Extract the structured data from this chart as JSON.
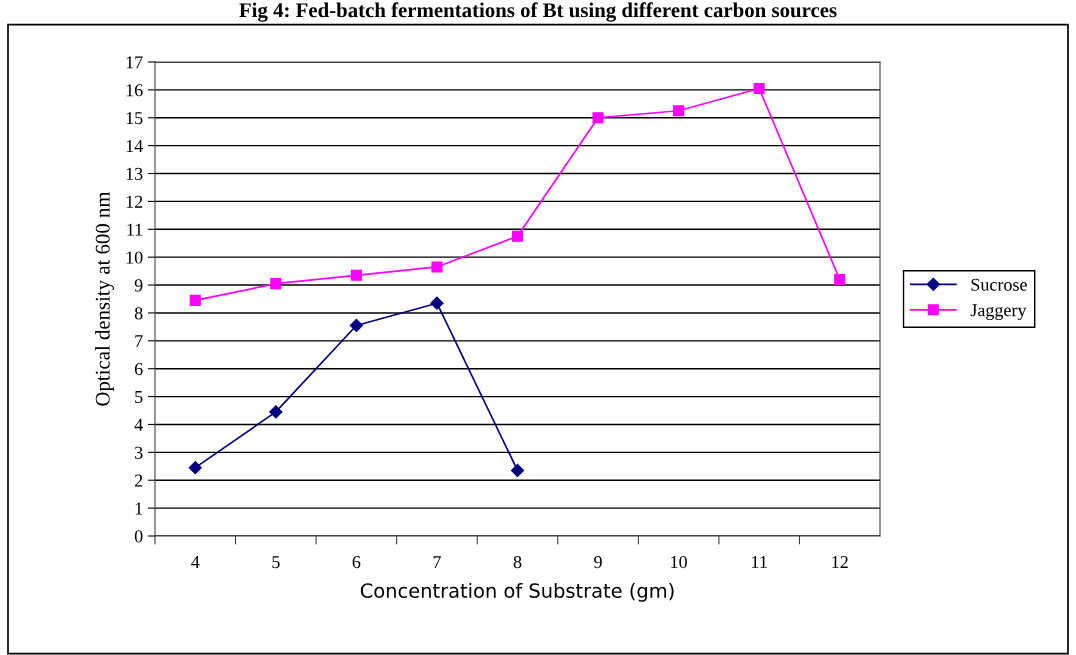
{
  "chart_data": {
    "type": "line",
    "title": "Fig 4: Fed-batch fermentations of Bt using different carbon sources",
    "xlabel": "Concentration of Substrate (gm)",
    "ylabel": "Optical density at 600 nm",
    "categories": [
      "4",
      "5",
      "6",
      "7",
      "8",
      "9",
      "10",
      "11",
      "12"
    ],
    "series": [
      {
        "name": "Sucrose",
        "color": "#000080",
        "marker": "diamond",
        "values": [
          2.45,
          4.45,
          7.55,
          8.35,
          2.35,
          null,
          null,
          null,
          null
        ]
      },
      {
        "name": "Jaggery",
        "color": "#ff00ff",
        "marker": "square",
        "values": [
          8.45,
          9.05,
          9.35,
          9.65,
          10.75,
          15.0,
          15.25,
          16.05,
          9.2
        ]
      }
    ],
    "ylim": [
      0,
      17
    ],
    "yticks": [
      0,
      1,
      2,
      3,
      4,
      5,
      6,
      7,
      8,
      9,
      10,
      11,
      12,
      13,
      14,
      15,
      16,
      17
    ],
    "grid": "y",
    "legend": "right",
    "line_style": "solid"
  }
}
